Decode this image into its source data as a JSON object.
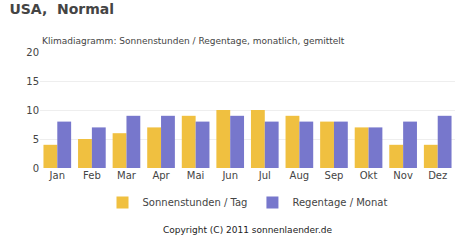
{
  "chart_data": {
    "type": "bar",
    "title": "USA,  Normal",
    "subtitle": "Klimadiagramm: Sonnenstunden / Regentage, monatlich, gemittelt",
    "categories": [
      "Jan",
      "Feb",
      "Mar",
      "Apr",
      "Mai",
      "Jun",
      "Jul",
      "Aug",
      "Sep",
      "Okt",
      "Nov",
      "Dez"
    ],
    "series": [
      {
        "name": "Sonnenstunden / Tag",
        "color": "#F0C040",
        "values": [
          4,
          5,
          6,
          7,
          9,
          10,
          10,
          9,
          8,
          7,
          4,
          4
        ]
      },
      {
        "name": "Regentage / Monat",
        "color": "#7777CC",
        "values": [
          8,
          7,
          9,
          9,
          8,
          9,
          8,
          8,
          8,
          7,
          8,
          9
        ]
      }
    ],
    "ylim": [
      0,
      20
    ],
    "yticks": [
      0,
      5,
      10,
      15,
      20
    ],
    "grid": true,
    "legend": "bottom",
    "annotations": [
      "Copyright (C) 2011 sonnenlaender.de"
    ]
  }
}
